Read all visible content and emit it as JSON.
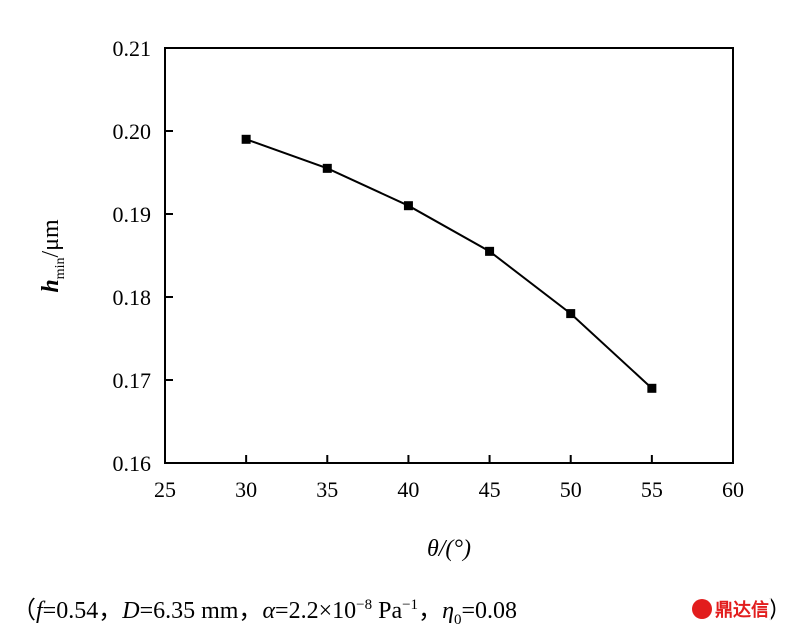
{
  "chart_data": {
    "type": "line",
    "xlabel": "θ/(°)",
    "ylabel_main": "h",
    "ylabel_sub": "min",
    "ylabel_unit": "/μm",
    "xlim": [
      25,
      60
    ],
    "ylim": [
      0.16,
      0.21
    ],
    "x_ticks": [
      "25",
      "30",
      "35",
      "40",
      "45",
      "50",
      "55",
      "60"
    ],
    "y_ticks": [
      "0.16",
      "0.17",
      "0.18",
      "0.19",
      "0.20",
      "0.21"
    ],
    "x": [
      30,
      35,
      40,
      45,
      50,
      55
    ],
    "y": [
      0.199,
      0.1955,
      0.191,
      0.1855,
      0.178,
      0.169
    ],
    "grid": false,
    "marker": "square",
    "line_color": "#000000"
  },
  "caption": {
    "open": "（",
    "f_sym": "f",
    "f_val": "=0.54，",
    "D_sym": "D",
    "D_val": "=6.35 mm，",
    "alpha_sym": "α",
    "alpha_val": "=2.2×10",
    "alpha_exp": "−8",
    "alpha_unit": " Pa",
    "alpha_unit_exp": "−1",
    "eta_sep": "，",
    "eta_sym": "η",
    "eta_sub": "0",
    "eta_val": "=0.08",
    "close": "）"
  },
  "watermark": {
    "text": "鼎达信"
  }
}
